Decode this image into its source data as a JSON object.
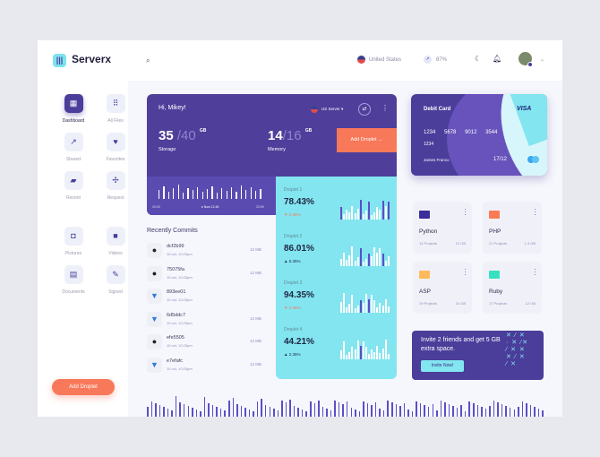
{
  "brand": {
    "name": "Serverx"
  },
  "sidebar": {
    "items": [
      {
        "label": "Dashboard",
        "icon": "dashboard-icon"
      },
      {
        "label": "All Files",
        "icon": "grid-icon"
      },
      {
        "label": "Shared",
        "icon": "share-icon"
      },
      {
        "label": "Favorites",
        "icon": "heart-icon"
      },
      {
        "label": "Recent",
        "icon": "file-icon"
      },
      {
        "label": "Request",
        "icon": "request-icon"
      },
      {
        "label": "Pictures",
        "icon": "camera-icon"
      },
      {
        "label": "Videos",
        "icon": "video-icon"
      },
      {
        "label": "Documents",
        "icon": "document-icon"
      },
      {
        "label": "Signed",
        "icon": "signed-icon"
      }
    ],
    "add_button": "Add Droplet"
  },
  "topbar": {
    "country": "United States",
    "speed": "87%"
  },
  "hero": {
    "greeting": "Hi, Mikey!",
    "server": "US Server",
    "storage_used": "35",
    "storage_total": "/40",
    "storage_unit": "GB",
    "storage_label": "Storage",
    "memory_used": "14",
    "memory_total": "/16",
    "memory_unit": "GB",
    "memory_label": "Memory",
    "add_button": "Add Droplet",
    "time_start": "00:00",
    "time_now": "Now 12:40",
    "time_end": "23:59"
  },
  "droplets": [
    {
      "name": "Droplet 1",
      "percent": "78.43%",
      "change": "2.35%",
      "trend": "down"
    },
    {
      "name": "Droplet 2",
      "percent": "86.01%",
      "change": "5.35%",
      "trend": "up"
    },
    {
      "name": "Droplet 3",
      "percent": "94.35%",
      "change": "2.35%",
      "trend": "down"
    },
    {
      "name": "Droplet 4",
      "percent": "44.21%",
      "change": "2.35%",
      "trend": "up"
    }
  ],
  "commits": {
    "title": "Recently Commits",
    "items": [
      {
        "hash": "dcf2b99",
        "date": "10 oct, 10:23pm",
        "size": "12 MB",
        "source": "github"
      },
      {
        "hash": "75075fa",
        "date": "10 oct, 10:23pm",
        "size": "12 MB",
        "source": "github"
      },
      {
        "hash": "893ee01",
        "date": "10 oct, 10:23pm",
        "size": "",
        "source": "bitbucket"
      },
      {
        "hash": "6d5ddc7",
        "date": "10 oct, 10:23pm",
        "size": "12 MB",
        "source": "bitbucket"
      },
      {
        "hash": "efe5505",
        "date": "10 oct, 10:23pm",
        "size": "12 MB",
        "source": "github"
      },
      {
        "hash": "e7efafc",
        "date": "10 oct, 10:23pm",
        "size": "12 MB",
        "source": "bitbucket"
      }
    ]
  },
  "card": {
    "title": "Debit Card",
    "brand": "VISA",
    "number": [
      "1234",
      "5678",
      "9012",
      "3544"
    ],
    "number_extra": "1234",
    "holder": "James Franco",
    "expiry": "17/12"
  },
  "folders": [
    {
      "name": "Python",
      "projects": "14 Projects",
      "size": "12 GB",
      "color": "#3a2d9c"
    },
    {
      "name": "PHP",
      "projects": "21 Projects",
      "size": "1.4 GB",
      "color": "#fb7a55"
    },
    {
      "name": "ASP",
      "projects": "19 Projects",
      "size": "24 GB",
      "color": "#ffba5c"
    },
    {
      "name": "Ruby",
      "projects": "17 Projects",
      "size": "12 GB",
      "color": "#37e0c0"
    }
  ],
  "invite": {
    "text": "Invite 2 friends and get 5 GB extra space.",
    "button": "Invite Now!"
  }
}
